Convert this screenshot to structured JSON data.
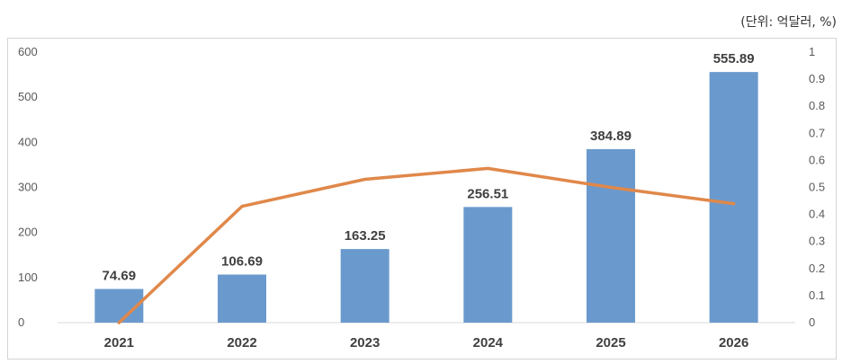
{
  "unit_label": "(단위: 억달러, %)",
  "chart_data": {
    "type": "bar",
    "categories": [
      "2021",
      "2022",
      "2023",
      "2024",
      "2025",
      "2026"
    ],
    "series": [
      {
        "type": "bar",
        "axis": "left",
        "color": "#6a9acd",
        "values": [
          74.69,
          106.69,
          163.25,
          256.51,
          384.89,
          555.89
        ],
        "value_labels": [
          "74.69",
          "106.69",
          "163.25",
          "256.51",
          "384.89",
          "555.89"
        ]
      },
      {
        "type": "line",
        "axis": "right",
        "color": "#e0884a",
        "values": [
          0,
          0.43,
          0.53,
          0.57,
          0.5,
          0.44
        ]
      }
    ],
    "ylim_left": [
      0,
      600
    ],
    "ylim_right": [
      0,
      1
    ],
    "yticks_left": [
      "0",
      "100",
      "200",
      "300",
      "400",
      "500",
      "600"
    ],
    "yticks_right": [
      "0",
      "0.1",
      "0.2",
      "0.3",
      "0.4",
      "0.5",
      "0.6",
      "0.7",
      "0.8",
      "0.9",
      "1"
    ],
    "grid": false,
    "legend": "none"
  }
}
